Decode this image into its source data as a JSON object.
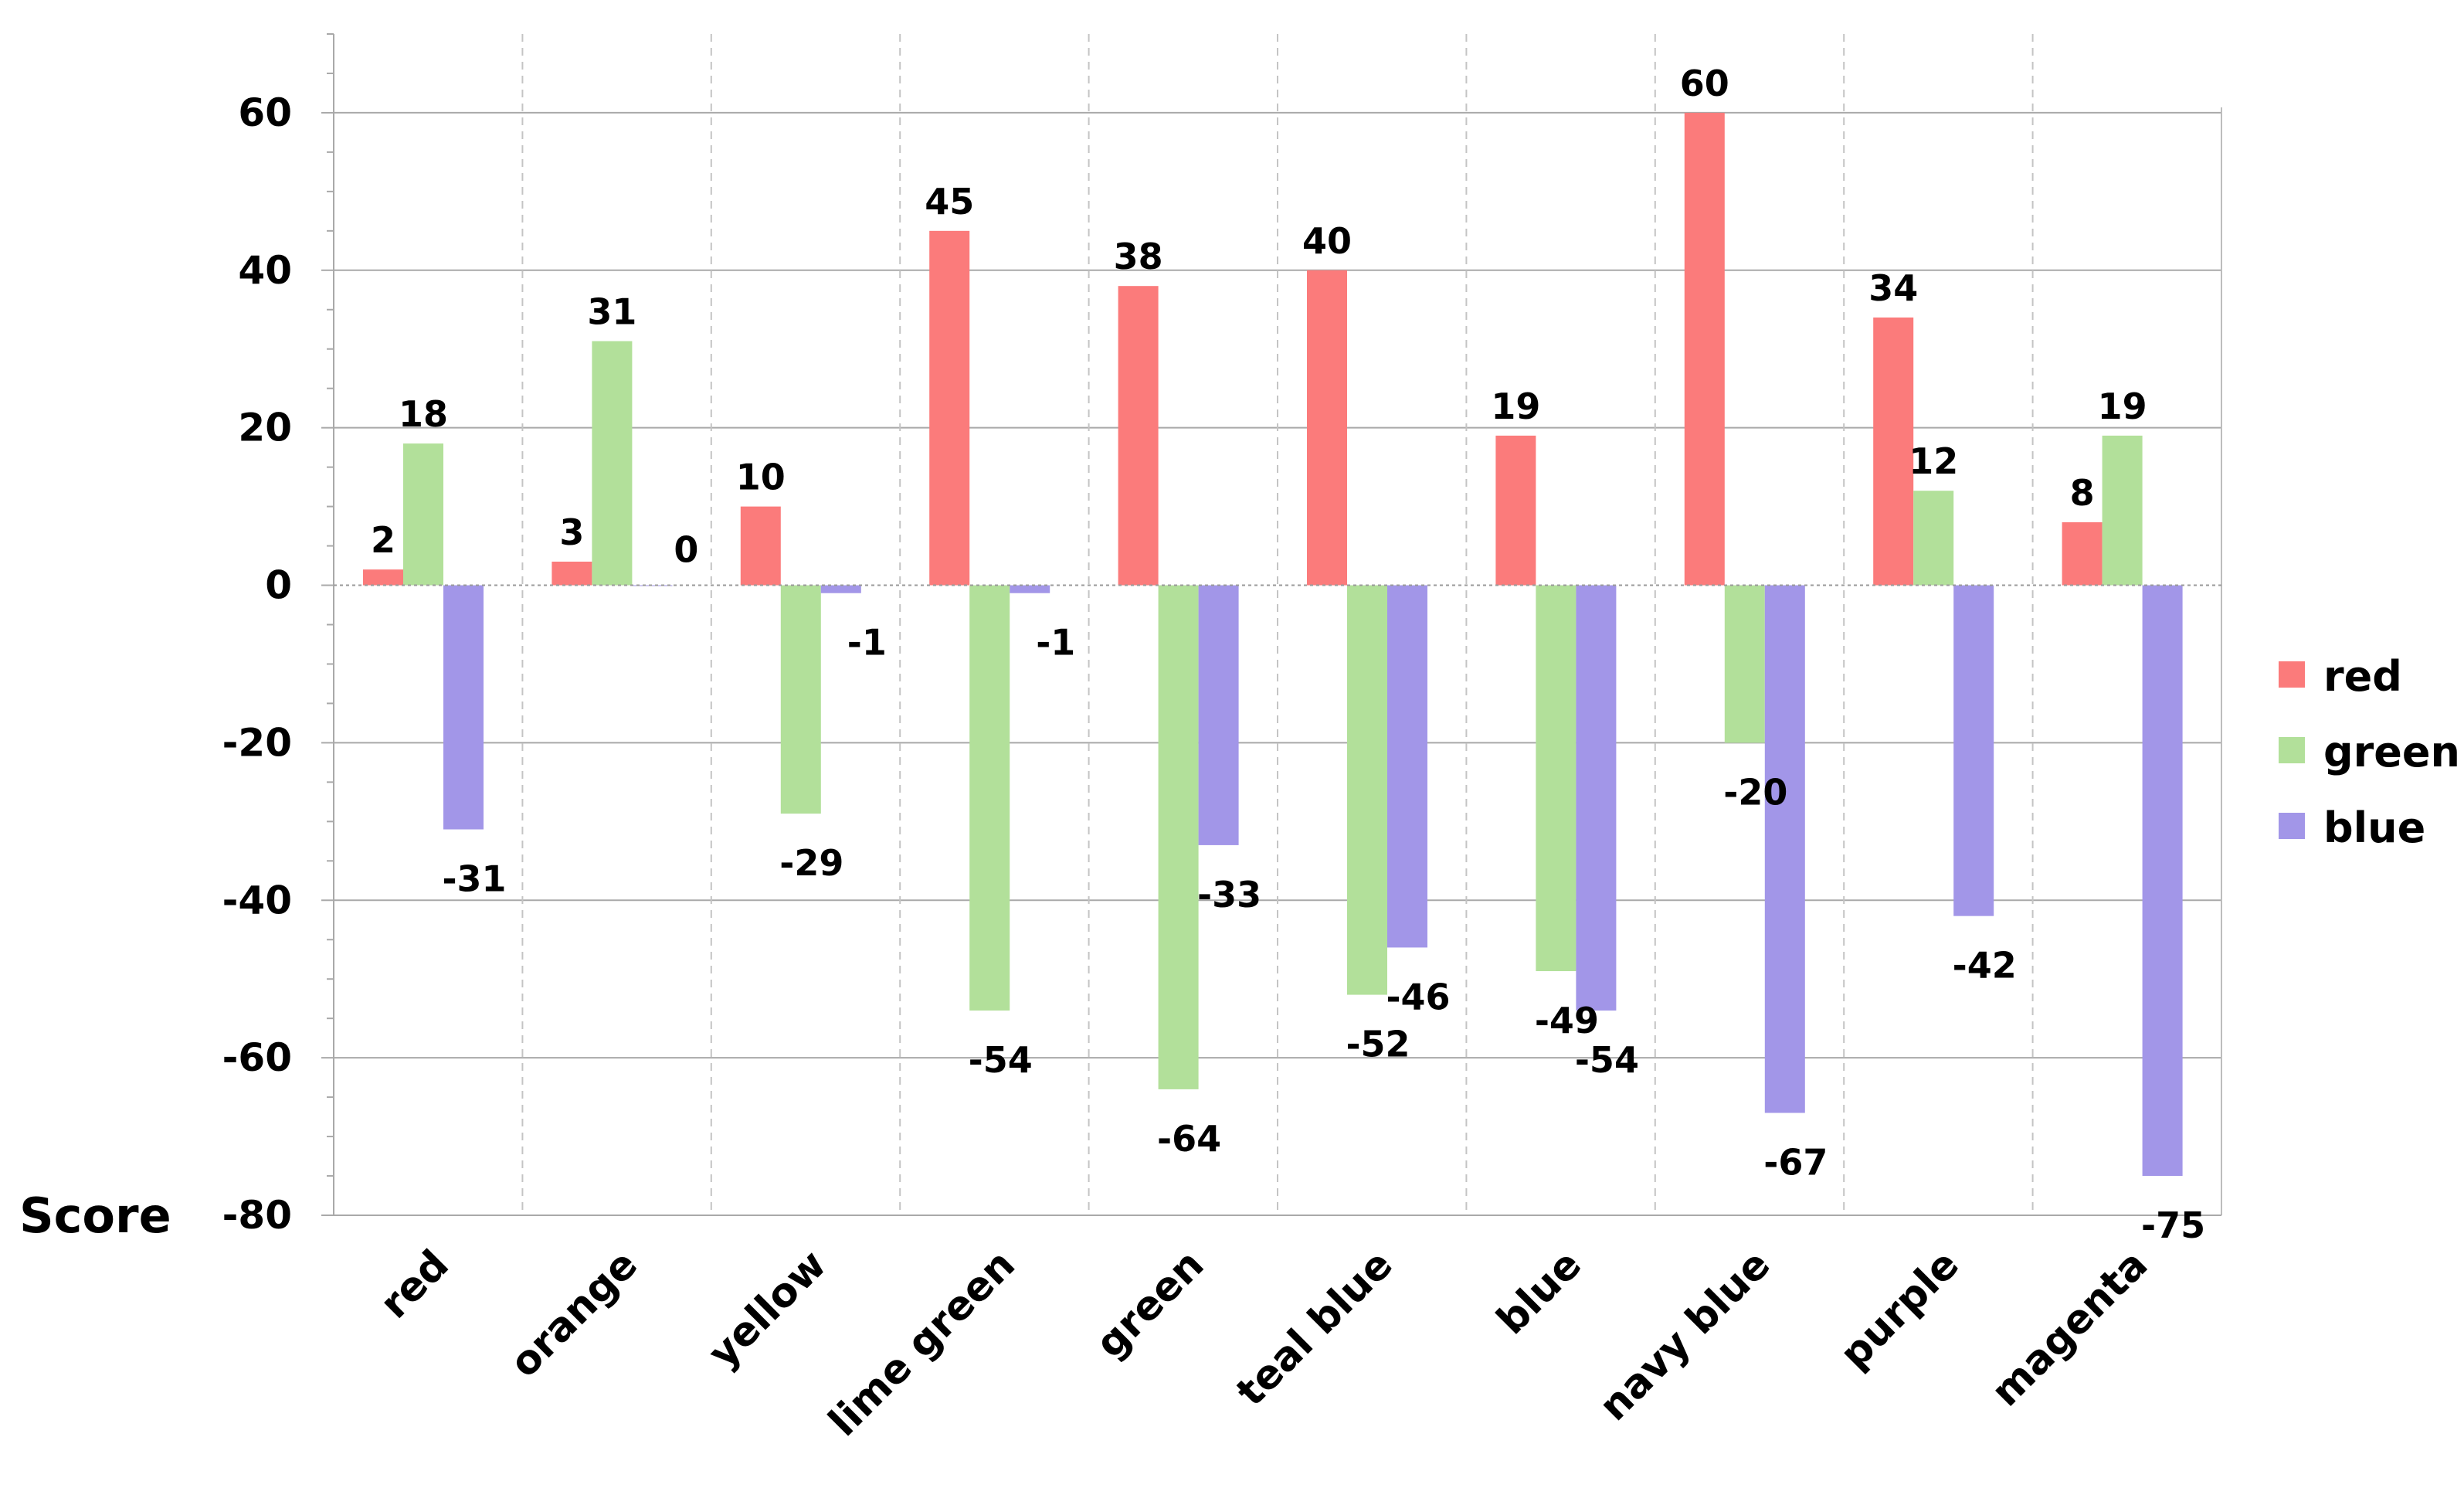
{
  "chart_data": {
    "type": "bar",
    "ylabel": "Score",
    "ylim": [
      -80,
      70
    ],
    "yticks": [
      -80,
      -60,
      -40,
      -20,
      0,
      20,
      40,
      60
    ],
    "grid": true,
    "legend_position": "right",
    "categories": [
      "red",
      "orange",
      "yellow",
      "lime green",
      "green",
      "teal blue",
      "blue",
      "navy blue",
      "purple",
      "magenta"
    ],
    "series": [
      {
        "name": "red",
        "color": "#fb7b7b",
        "values": [
          2,
          3,
          10,
          45,
          38,
          40,
          19,
          60,
          34,
          8
        ]
      },
      {
        "name": "green",
        "color": "#b2e09a",
        "values": [
          18,
          31,
          -29,
          -54,
          -64,
          -52,
          -49,
          -20,
          12,
          19
        ]
      },
      {
        "name": "blue",
        "color": "#a296e8",
        "values": [
          -31,
          0,
          -1,
          -1,
          -33,
          -46,
          -54,
          -67,
          -42,
          -75
        ]
      }
    ]
  }
}
